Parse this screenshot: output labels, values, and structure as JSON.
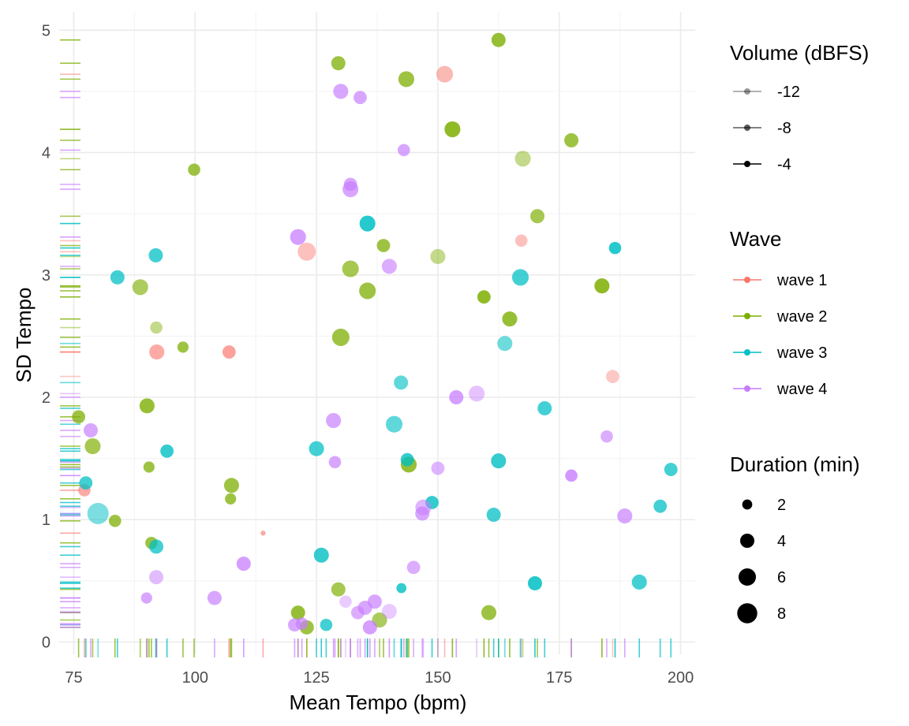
{
  "chart_data": {
    "type": "scatter",
    "xlabel": "Mean Tempo (bpm)",
    "ylabel": "SD Tempo",
    "xlim": [
      72,
      203
    ],
    "ylim": [
      -0.1,
      5.15
    ],
    "x_ticks": [
      75,
      100,
      125,
      150,
      175,
      200
    ],
    "y_ticks": [
      0,
      1,
      2,
      3,
      4,
      5
    ],
    "x_tick_labels": [
      "75",
      "100",
      "125",
      "150",
      "175",
      "200"
    ],
    "y_tick_labels": [
      "0",
      "1",
      "2",
      "3",
      "4",
      "5"
    ],
    "grid": true,
    "rug": true,
    "colors": {
      "wave 1": "#F8766D",
      "wave 2": "#7CAE00",
      "wave 3": "#00BFC4",
      "wave 4": "#C77CFF"
    },
    "legends": {
      "volume": {
        "title": "Volume (dBFS)",
        "items": [
          {
            "label": "-12",
            "volume": -12
          },
          {
            "label": "-8",
            "volume": -8
          },
          {
            "label": "-4",
            "volume": -4
          }
        ]
      },
      "wave": {
        "title": "Wave",
        "items": [
          {
            "label": "wave 1"
          },
          {
            "label": "wave 2"
          },
          {
            "label": "wave 3"
          },
          {
            "label": "wave 4"
          }
        ]
      },
      "duration": {
        "title": "Duration (min)",
        "items": [
          {
            "label": "2",
            "duration": 2
          },
          {
            "label": "4",
            "duration": 4
          },
          {
            "label": "6",
            "duration": 6
          },
          {
            "label": "8",
            "duration": 8
          }
        ]
      }
    },
    "legend_position": "right",
    "series": [
      {
        "name": "wave 1",
        "points": [
          {
            "x": 151.4,
            "y": 4.64,
            "duration": 5.5,
            "volume": -10
          },
          {
            "x": 123.0,
            "y": 3.19,
            "duration": 6.5,
            "volume": -11
          },
          {
            "x": 167.2,
            "y": 3.28,
            "duration": 3.0,
            "volume": -11
          },
          {
            "x": 92.1,
            "y": 2.37,
            "duration": 4.5,
            "volume": -8
          },
          {
            "x": 107.0,
            "y": 2.37,
            "duration": 3.5,
            "volume": -7
          },
          {
            "x": 186.0,
            "y": 2.17,
            "duration": 3.5,
            "volume": -12
          },
          {
            "x": 77.2,
            "y": 1.24,
            "duration": 3.0,
            "volume": -8
          },
          {
            "x": 114.0,
            "y": 0.89,
            "duration": 0.5,
            "volume": -8
          }
        ]
      },
      {
        "name": "wave 2",
        "points": [
          {
            "x": 162.5,
            "y": 4.92,
            "duration": 4.0,
            "volume": -5
          },
          {
            "x": 129.5,
            "y": 4.73,
            "duration": 4.0,
            "volume": -6
          },
          {
            "x": 143.5,
            "y": 4.6,
            "duration": 5.0,
            "volume": -6
          },
          {
            "x": 153.0,
            "y": 4.19,
            "duration": 5.0,
            "volume": -4
          },
          {
            "x": 177.5,
            "y": 4.1,
            "duration": 4.0,
            "volume": -6
          },
          {
            "x": 167.5,
            "y": 3.95,
            "duration": 5.0,
            "volume": -11
          },
          {
            "x": 99.8,
            "y": 3.86,
            "duration": 3.0,
            "volume": -6
          },
          {
            "x": 170.5,
            "y": 3.48,
            "duration": 4.0,
            "volume": -7
          },
          {
            "x": 138.8,
            "y": 3.24,
            "duration": 3.5,
            "volume": -6
          },
          {
            "x": 150.0,
            "y": 3.15,
            "duration": 4.5,
            "volume": -11
          },
          {
            "x": 132.0,
            "y": 3.05,
            "duration": 5.5,
            "volume": -7
          },
          {
            "x": 88.7,
            "y": 2.9,
            "duration": 5.0,
            "volume": -8
          },
          {
            "x": 183.8,
            "y": 2.91,
            "duration": 4.5,
            "volume": -4
          },
          {
            "x": 135.5,
            "y": 2.87,
            "duration": 5.5,
            "volume": -6
          },
          {
            "x": 159.5,
            "y": 2.82,
            "duration": 3.5,
            "volume": -4
          },
          {
            "x": 164.8,
            "y": 2.64,
            "duration": 4.5,
            "volume": -5
          },
          {
            "x": 92.0,
            "y": 2.57,
            "duration": 3.0,
            "volume": -11
          },
          {
            "x": 130.0,
            "y": 2.49,
            "duration": 6.0,
            "volume": -6
          },
          {
            "x": 97.5,
            "y": 2.41,
            "duration": 2.5,
            "volume": -6
          },
          {
            "x": 90.1,
            "y": 1.93,
            "duration": 4.5,
            "volume": -5
          },
          {
            "x": 76.0,
            "y": 1.84,
            "duration": 3.5,
            "volume": -6
          },
          {
            "x": 78.9,
            "y": 1.6,
            "duration": 5.0,
            "volume": -7
          },
          {
            "x": 144.0,
            "y": 1.45,
            "duration": 5.0,
            "volume": -5
          },
          {
            "x": 90.5,
            "y": 1.43,
            "duration": 2.5,
            "volume": -6
          },
          {
            "x": 107.5,
            "y": 1.28,
            "duration": 4.5,
            "volume": -6
          },
          {
            "x": 107.3,
            "y": 1.17,
            "duration": 2.5,
            "volume": -6
          },
          {
            "x": 83.5,
            "y": 0.99,
            "duration": 3.0,
            "volume": -6
          },
          {
            "x": 91.0,
            "y": 0.81,
            "duration": 3.0,
            "volume": -6
          },
          {
            "x": 129.5,
            "y": 0.43,
            "duration": 4.0,
            "volume": -7
          },
          {
            "x": 160.5,
            "y": 0.24,
            "duration": 4.5,
            "volume": -6
          },
          {
            "x": 121.2,
            "y": 0.24,
            "duration": 4.0,
            "volume": -5
          },
          {
            "x": 138.0,
            "y": 0.18,
            "duration": 4.5,
            "volume": -8
          },
          {
            "x": 123.0,
            "y": 0.12,
            "duration": 4.0,
            "volume": -6
          }
        ]
      },
      {
        "name": "wave 3",
        "points": [
          {
            "x": 135.5,
            "y": 3.42,
            "duration": 5.0,
            "volume": -4
          },
          {
            "x": 186.5,
            "y": 3.22,
            "duration": 3.0,
            "volume": -4
          },
          {
            "x": 91.9,
            "y": 3.16,
            "duration": 4.0,
            "volume": -6
          },
          {
            "x": 84.0,
            "y": 2.98,
            "duration": 4.0,
            "volume": -6
          },
          {
            "x": 167.0,
            "y": 2.98,
            "duration": 5.5,
            "volume": -6
          },
          {
            "x": 163.8,
            "y": 2.44,
            "duration": 4.5,
            "volume": -9
          },
          {
            "x": 142.4,
            "y": 2.12,
            "duration": 4.0,
            "volume": -8
          },
          {
            "x": 172.0,
            "y": 1.91,
            "duration": 4.0,
            "volume": -6
          },
          {
            "x": 141.0,
            "y": 1.78,
            "duration": 5.5,
            "volume": -8
          },
          {
            "x": 125.0,
            "y": 1.58,
            "duration": 4.5,
            "volume": -6
          },
          {
            "x": 94.2,
            "y": 1.56,
            "duration": 3.5,
            "volume": -5
          },
          {
            "x": 162.5,
            "y": 1.48,
            "duration": 4.5,
            "volume": -5
          },
          {
            "x": 143.7,
            "y": 1.49,
            "duration": 3.5,
            "volume": -5
          },
          {
            "x": 198.0,
            "y": 1.41,
            "duration": 3.5,
            "volume": -6
          },
          {
            "x": 77.5,
            "y": 1.3,
            "duration": 3.5,
            "volume": -6
          },
          {
            "x": 148.8,
            "y": 1.14,
            "duration": 3.5,
            "volume": -5
          },
          {
            "x": 195.8,
            "y": 1.11,
            "duration": 3.5,
            "volume": -6
          },
          {
            "x": 80.0,
            "y": 1.05,
            "duration": 9.0,
            "volume": -10
          },
          {
            "x": 161.5,
            "y": 1.04,
            "duration": 4.0,
            "volume": -6
          },
          {
            "x": 92.0,
            "y": 0.78,
            "duration": 4.0,
            "volume": -6
          },
          {
            "x": 126.0,
            "y": 0.71,
            "duration": 4.5,
            "volume": -5
          },
          {
            "x": 170.0,
            "y": 0.48,
            "duration": 4.0,
            "volume": -4
          },
          {
            "x": 191.5,
            "y": 0.49,
            "duration": 4.5,
            "volume": -6
          },
          {
            "x": 142.5,
            "y": 0.44,
            "duration": 2.0,
            "volume": -5
          },
          {
            "x": 127.0,
            "y": 0.14,
            "duration": 3.0,
            "volume": -6
          }
        ]
      },
      {
        "name": "wave 4",
        "points": [
          {
            "x": 130.0,
            "y": 4.5,
            "duration": 4.5,
            "volume": -7
          },
          {
            "x": 134.0,
            "y": 4.45,
            "duration": 3.5,
            "volume": -7
          },
          {
            "x": 143.0,
            "y": 4.02,
            "duration": 3.0,
            "volume": -7
          },
          {
            "x": 132.0,
            "y": 3.7,
            "duration": 5.0,
            "volume": -7
          },
          {
            "x": 132.0,
            "y": 3.74,
            "duration": 3.5,
            "volume": -7
          },
          {
            "x": 121.2,
            "y": 3.31,
            "duration": 5.0,
            "volume": -6
          },
          {
            "x": 140.0,
            "y": 3.07,
            "duration": 4.5,
            "volume": -8
          },
          {
            "x": 158.0,
            "y": 2.03,
            "duration": 5.0,
            "volume": -11
          },
          {
            "x": 153.8,
            "y": 2.0,
            "duration": 4.0,
            "volume": -6
          },
          {
            "x": 128.5,
            "y": 1.81,
            "duration": 4.5,
            "volume": -7
          },
          {
            "x": 78.5,
            "y": 1.73,
            "duration": 4.0,
            "volume": -7
          },
          {
            "x": 184.8,
            "y": 1.68,
            "duration": 3.0,
            "volume": -8
          },
          {
            "x": 128.8,
            "y": 1.47,
            "duration": 3.0,
            "volume": -7
          },
          {
            "x": 150.0,
            "y": 1.42,
            "duration": 3.5,
            "volume": -9
          },
          {
            "x": 177.5,
            "y": 1.36,
            "duration": 3.0,
            "volume": -5
          },
          {
            "x": 147.0,
            "y": 1.1,
            "duration": 5.0,
            "volume": -9
          },
          {
            "x": 146.8,
            "y": 1.05,
            "duration": 4.0,
            "volume": -7
          },
          {
            "x": 188.5,
            "y": 1.03,
            "duration": 4.5,
            "volume": -7
          },
          {
            "x": 110.0,
            "y": 0.64,
            "duration": 4.0,
            "volume": -6
          },
          {
            "x": 145.0,
            "y": 0.61,
            "duration": 3.5,
            "volume": -8
          },
          {
            "x": 92.0,
            "y": 0.53,
            "duration": 4.0,
            "volume": -10
          },
          {
            "x": 90.0,
            "y": 0.36,
            "duration": 2.5,
            "volume": -7
          },
          {
            "x": 104.0,
            "y": 0.36,
            "duration": 4.0,
            "volume": -7
          },
          {
            "x": 131.0,
            "y": 0.33,
            "duration": 3.0,
            "volume": -12
          },
          {
            "x": 135.0,
            "y": 0.28,
            "duration": 4.0,
            "volume": -7
          },
          {
            "x": 137.0,
            "y": 0.33,
            "duration": 4.0,
            "volume": -7
          },
          {
            "x": 140.0,
            "y": 0.25,
            "duration": 4.5,
            "volume": -12
          },
          {
            "x": 133.5,
            "y": 0.24,
            "duration": 3.5,
            "volume": -8
          },
          {
            "x": 120.5,
            "y": 0.14,
            "duration": 3.5,
            "volume": -7
          },
          {
            "x": 122.0,
            "y": 0.15,
            "duration": 3.0,
            "volume": -7
          },
          {
            "x": 136.0,
            "y": 0.12,
            "duration": 4.0,
            "volume": -6
          }
        ]
      }
    ]
  }
}
